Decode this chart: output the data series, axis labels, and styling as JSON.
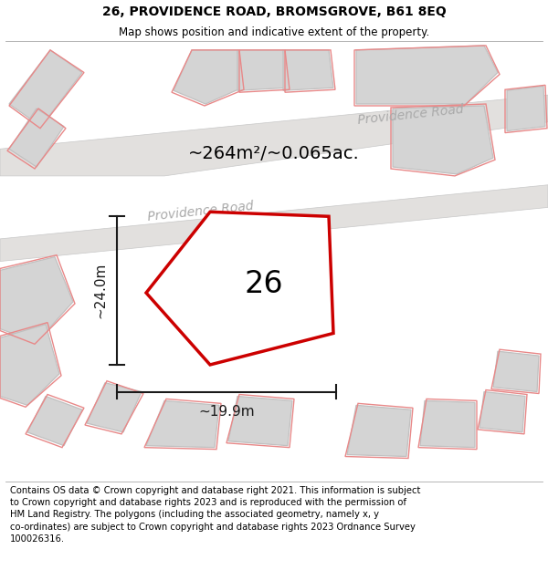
{
  "title_line1": "26, PROVIDENCE ROAD, BROMSGROVE, B61 8EQ",
  "title_line2": "Map shows position and indicative extent of the property.",
  "footer_text": "Contains OS data © Crown copyright and database right 2021. This information is subject\nto Crown copyright and database rights 2023 and is reproduced with the permission of\nHM Land Registry. The polygons (including the associated geometry, namely x, y\nco-ordinates) are subject to Crown copyright and database rights 2023 Ordnance Survey\n100026316.",
  "bg_color": "#f0efed",
  "area_label": "~264m²/~0.065ac.",
  "width_label": "~19.9m",
  "height_label": "~24.0m",
  "number_label": "26",
  "highlight_color": "#cc0000",
  "road_label_upper": "Providence Road",
  "road_label_lower": "Providence Road",
  "building_fill": "#d4d4d4",
  "building_edge": "#c0c0c0",
  "road_fill": "#e2e0de",
  "plot_edge": "#e88888",
  "dim_color": "#1a1a1a",
  "title_fontsize": 10,
  "subtitle_fontsize": 8.5,
  "footer_fontsize": 7.2,
  "area_fontsize": 14,
  "number_fontsize": 24,
  "dim_fontsize": 11,
  "road_fontsize": 10
}
